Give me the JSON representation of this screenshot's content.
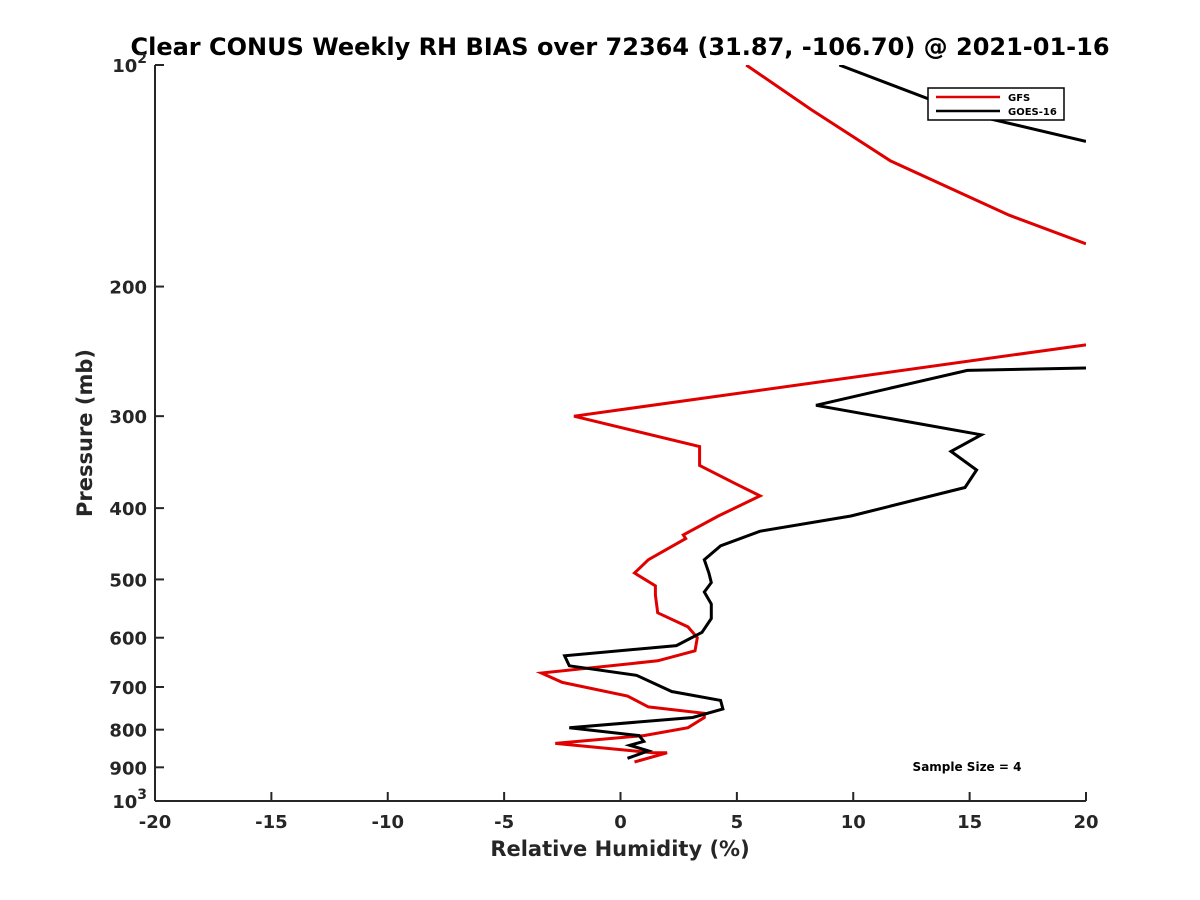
{
  "chart_data": {
    "type": "line",
    "title": "Clear CONUS Weekly RH BIAS over 72364 (31.87, -106.70) @ 2021-01-16",
    "xlabel": "Relative Humidity (%)",
    "ylabel": "Pressure (mb)",
    "xlim": [
      -20,
      20
    ],
    "ylim": [
      1000,
      100
    ],
    "yscale": "log",
    "y_reversed": true,
    "grid": false,
    "legend_position": "top-right",
    "x_ticks": [
      "-20",
      "-15",
      "-10",
      "-5",
      "0",
      "5",
      "10",
      "15",
      "20"
    ],
    "y_ticks": [
      {
        "value": 100,
        "label": "10",
        "exp": "2"
      },
      {
        "value": 200,
        "label": "200"
      },
      {
        "value": 300,
        "label": "300"
      },
      {
        "value": 400,
        "label": "400"
      },
      {
        "value": 500,
        "label": "500"
      },
      {
        "value": 600,
        "label": "600"
      },
      {
        "value": 700,
        "label": "700"
      },
      {
        "value": 800,
        "label": "800"
      },
      {
        "value": 900,
        "label": "900"
      },
      {
        "value": 1000,
        "label": "10",
        "exp": "3"
      }
    ],
    "annotation": "Sample Size = 4",
    "series": [
      {
        "name": "GFS",
        "color": "#e00000",
        "points": [
          [
            5.4,
            100
          ],
          [
            8.2,
            115
          ],
          [
            11.6,
            135
          ],
          [
            16.7,
            160
          ],
          [
            20.0,
            175
          ],
          [
            null,
            null
          ],
          [
            20.0,
            240
          ],
          [
            -2.0,
            300
          ],
          [
            3.4,
            330
          ],
          [
            3.4,
            350
          ],
          [
            4.9,
            370
          ],
          [
            6.0,
            385
          ],
          [
            4.2,
            410
          ],
          [
            2.7,
            435
          ],
          [
            2.8,
            440
          ],
          [
            1.2,
            470
          ],
          [
            0.6,
            490
          ],
          [
            1.5,
            510
          ],
          [
            1.5,
            525
          ],
          [
            1.6,
            555
          ],
          [
            2.9,
            580
          ],
          [
            3.3,
            600
          ],
          [
            3.2,
            625
          ],
          [
            1.6,
            645
          ],
          [
            -3.4,
            670
          ],
          [
            -2.5,
            690
          ],
          [
            0.3,
            720
          ],
          [
            1.2,
            745
          ],
          [
            3.6,
            760
          ],
          [
            3.6,
            770
          ],
          [
            2.9,
            795
          ],
          [
            1.0,
            815
          ],
          [
            -2.8,
            835
          ],
          [
            1.4,
            860
          ],
          [
            2.0,
            860
          ],
          [
            0.6,
            885
          ]
        ]
      },
      {
        "name": "GOES-16",
        "color": "#000000",
        "points": [
          [
            9.4,
            100
          ],
          [
            13.5,
            112
          ],
          [
            14.2,
            115
          ],
          [
            20.0,
            127
          ],
          [
            null,
            null
          ],
          [
            20.0,
            258
          ],
          [
            14.9,
            260
          ],
          [
            8.4,
            290
          ],
          [
            15.5,
            318
          ],
          [
            14.2,
            335
          ],
          [
            15.3,
            355
          ],
          [
            14.8,
            375
          ],
          [
            9.9,
            410
          ],
          [
            6.0,
            430
          ],
          [
            4.3,
            450
          ],
          [
            3.6,
            470
          ],
          [
            3.8,
            490
          ],
          [
            3.9,
            505
          ],
          [
            3.6,
            520
          ],
          [
            3.9,
            540
          ],
          [
            3.9,
            565
          ],
          [
            3.5,
            590
          ],
          [
            2.4,
            615
          ],
          [
            -2.4,
            635
          ],
          [
            -2.2,
            655
          ],
          [
            0.7,
            675
          ],
          [
            2.2,
            710
          ],
          [
            4.3,
            730
          ],
          [
            4.4,
            750
          ],
          [
            3.1,
            770
          ],
          [
            -2.2,
            795
          ],
          [
            0.8,
            815
          ],
          [
            1.0,
            830
          ],
          [
            0.4,
            840
          ],
          [
            1.2,
            855
          ],
          [
            0.3,
            875
          ]
        ]
      }
    ]
  }
}
